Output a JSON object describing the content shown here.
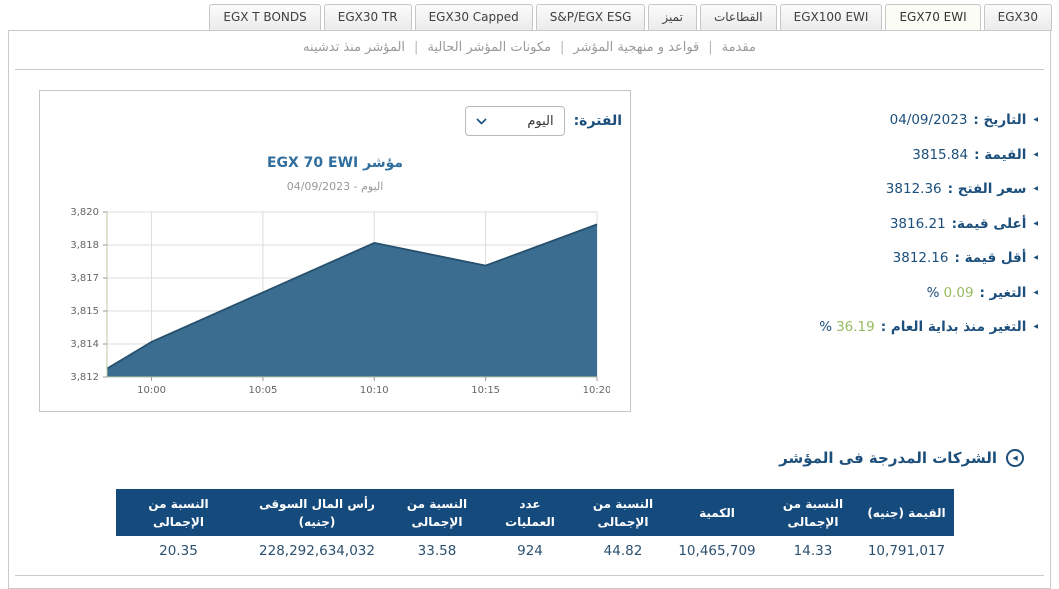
{
  "tabs": {
    "items": [
      {
        "name": "tab-egx30",
        "label": "EGX30",
        "active": false
      },
      {
        "name": "tab-egx70-ewi",
        "label": "EGX70 EWI",
        "active": true
      },
      {
        "name": "tab-egx100-ewi",
        "label": "EGX100 EWI",
        "active": false
      },
      {
        "name": "tab-sectors",
        "label": "القطاعات",
        "active": false
      },
      {
        "name": "tab-tamayoz",
        "label": "تميز",
        "active": false
      },
      {
        "name": "tab-sp-egx-esg",
        "label": "S&P/EGX ESG",
        "active": false
      },
      {
        "name": "tab-egx30-capped",
        "label": "EGX30 Capped",
        "active": false
      },
      {
        "name": "tab-egx30-tr",
        "label": "EGX30 TR",
        "active": false
      },
      {
        "name": "tab-egx-t-bonds",
        "label": "EGX T BONDS",
        "active": false
      }
    ]
  },
  "subnav": {
    "items": [
      {
        "name": "subnav-introduction",
        "label": "مقدمة"
      },
      {
        "name": "subnav-rules-methodology",
        "label": "قواعد و منهجية المؤشر"
      },
      {
        "name": "subnav-current-constituents",
        "label": "مكونات المؤشر الحالية"
      },
      {
        "name": "subnav-index-since-launch",
        "label": "المؤشر منذ تدشينه"
      }
    ]
  },
  "chart_panel": {
    "period_label": "الفترة:",
    "period_value": "اليوم",
    "title": "مؤشر EGX 70 EWI",
    "subtitle": "اليوم - 04/09/2023"
  },
  "chart_data": {
    "type": "area",
    "title": "مؤشر EGX 70 EWI",
    "subtitle": "اليوم - 04/09/2023",
    "grid": true,
    "ylim": [
      3812,
      3820
    ],
    "x_range": [
      0,
      22
    ],
    "x_ticks": [
      {
        "label": "10:00",
        "m": 2
      },
      {
        "label": "10:05",
        "m": 7
      },
      {
        "label": "10:10",
        "m": 12
      },
      {
        "label": "10:15",
        "m": 17
      },
      {
        "label": "10:20",
        "m": 22
      }
    ],
    "y_ticks": [
      {
        "label": "3,812",
        "value": 3812
      },
      {
        "label": "3,814",
        "value": 3813.6
      },
      {
        "label": "3,815",
        "value": 3815.2
      },
      {
        "label": "3,817",
        "value": 3816.8
      },
      {
        "label": "3,818",
        "value": 3818.4
      },
      {
        "label": "3,820",
        "value": 3820
      }
    ],
    "series": [
      {
        "name": "EGX 70 EWI",
        "points": [
          {
            "x": 0,
            "v": 3812.4
          },
          {
            "x": 2,
            "v": 3813.7
          },
          {
            "x": 7,
            "v": 3816.1
          },
          {
            "x": 12,
            "v": 3818.5
          },
          {
            "x": 17,
            "v": 3817.4
          },
          {
            "x": 22,
            "v": 3819.4
          }
        ]
      }
    ],
    "fill_color": "#3a6d8f",
    "line_color": "#27506e",
    "grid_color": "#dcdcdc",
    "axis_color": "#bccaa4"
  },
  "info_panel": {
    "rows": [
      {
        "name": "stat-date",
        "label": "التاريخ :",
        "value": "04/09/2023",
        "green": false,
        "percent": false
      },
      {
        "name": "stat-value",
        "label": "القيمة :",
        "value": "3815.84",
        "green": false,
        "percent": false
      },
      {
        "name": "stat-open-price",
        "label": "سعر الفتح :",
        "value": "3812.36",
        "green": false,
        "percent": false
      },
      {
        "name": "stat-highest-value",
        "label": "أعلى قيمة:",
        "value": "3816.21",
        "green": false,
        "percent": false
      },
      {
        "name": "stat-lowest-value",
        "label": "أقل قيمة :",
        "value": "3812.16",
        "green": false,
        "percent": false
      },
      {
        "name": "stat-change",
        "label": "التغير :",
        "value": "0.09",
        "green": true,
        "percent": true
      },
      {
        "name": "stat-ytd-change",
        "label": "التغير منذ بداية العام :",
        "value": "36.19",
        "green": true,
        "percent": true
      }
    ],
    "percent_sign": "%"
  },
  "companies": {
    "heading": "الشركات المدرجة فى المؤشر",
    "table": {
      "headers": [
        "القيمة (جنيه)",
        "النسبة من\nالإجمالى",
        "الكمية",
        "النسبة من\nالإجمالى",
        "عدد\nالعمليات",
        "النسبة من\nالإجمالى",
        "رأس المال السوقى\n(جنيه)",
        "النسبة من\nالإجمالى"
      ],
      "rows": [
        [
          "10,791,017",
          "14.33",
          "10,465,709",
          "44.82",
          "924",
          "33.58",
          "228,292,634,032",
          "20.35"
        ]
      ]
    }
  },
  "colors": {
    "navy": "#1c4f7c",
    "table_header": "#154a7d",
    "green": "#96bc5f",
    "chart_fill": "#3a6d8f",
    "chart_line": "#27506e",
    "title_blue": "#2f6e9e"
  }
}
